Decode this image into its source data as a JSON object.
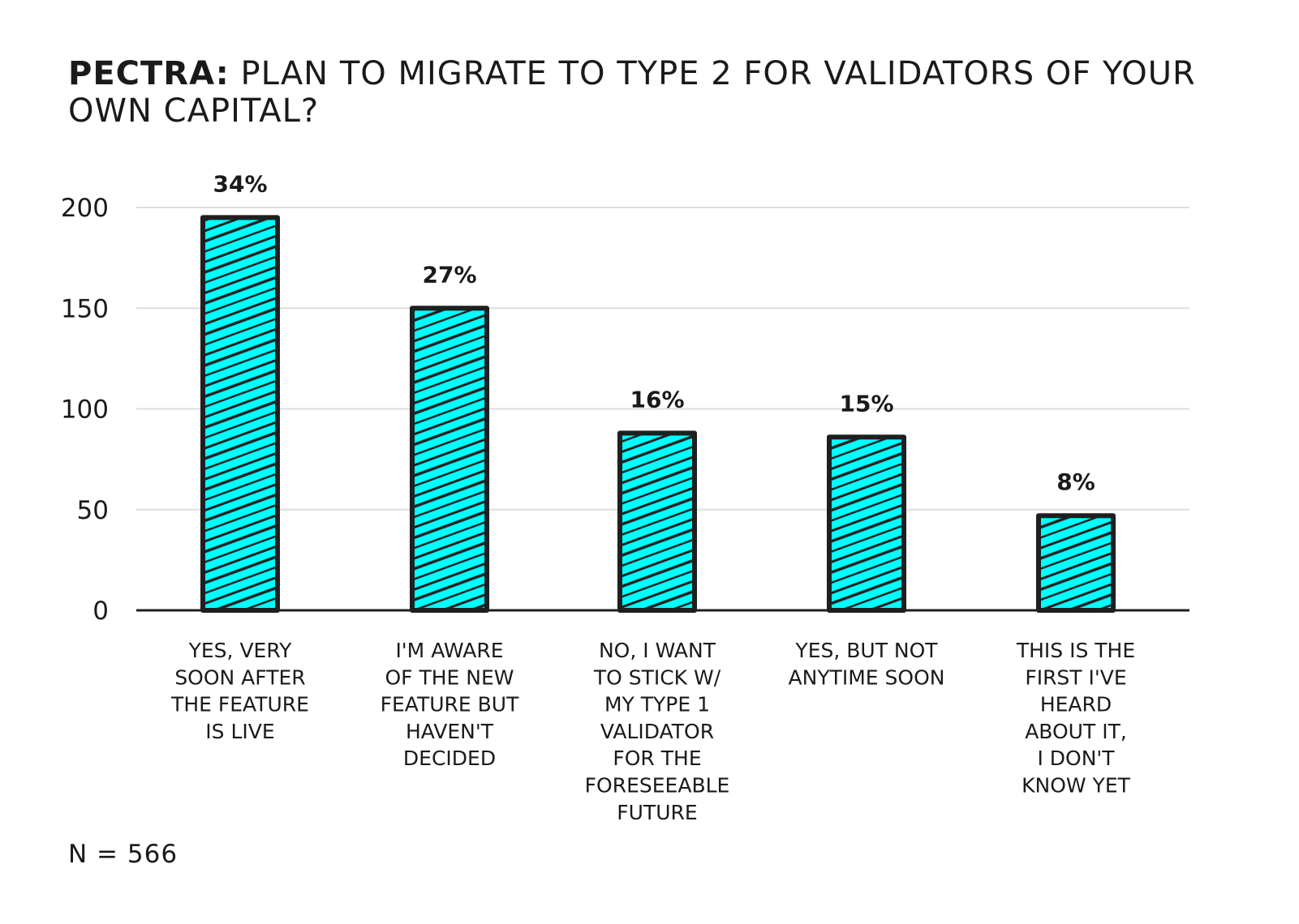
{
  "title_prefix": "PECTRA:",
  "title_rest": " PLAN TO MIGRATE TO TYPE 2 FOR VALIDATORS OF YOUR OWN CAPITAL?",
  "footnote": "N = 566",
  "chart_data": {
    "type": "bar",
    "title": "PECTRA: PLAN TO MIGRATE TO TYPE 2 FOR VALIDATORS OF YOUR OWN CAPITAL?",
    "categories": [
      [
        "YES, VERY",
        "SOON AFTER",
        "THE FEATURE",
        "IS LIVE"
      ],
      [
        "I'M AWARE",
        "OF THE NEW",
        "FEATURE BUT",
        "HAVEN'T",
        "DECIDED"
      ],
      [
        "NO, I WANT",
        "TO STICK W/",
        "MY TYPE 1",
        "VALIDATOR",
        "FOR THE",
        "FORESEEABLE",
        "FUTURE"
      ],
      [
        "YES, BUT NOT",
        "ANYTIME SOON"
      ],
      [
        "THIS IS THE",
        "FIRST I'VE",
        "HEARD",
        "ABOUT IT,",
        "I DON'T",
        "KNOW YET"
      ]
    ],
    "values": [
      195,
      150,
      88,
      86,
      47
    ],
    "data_labels": [
      "34%",
      "27%",
      "16%",
      "15%",
      "8%"
    ],
    "yticks": [
      0,
      50,
      100,
      150,
      200
    ],
    "ylim": [
      0,
      210
    ],
    "grid": true,
    "legend": "none",
    "xlabel": "",
    "ylabel": "",
    "colors": {
      "bar_fill": "#00ffff",
      "bar_stroke": "#1f1f1f",
      "hatch": "#1f1f1f",
      "grid": "#dddddd",
      "axis": "#1f1f1f"
    }
  }
}
